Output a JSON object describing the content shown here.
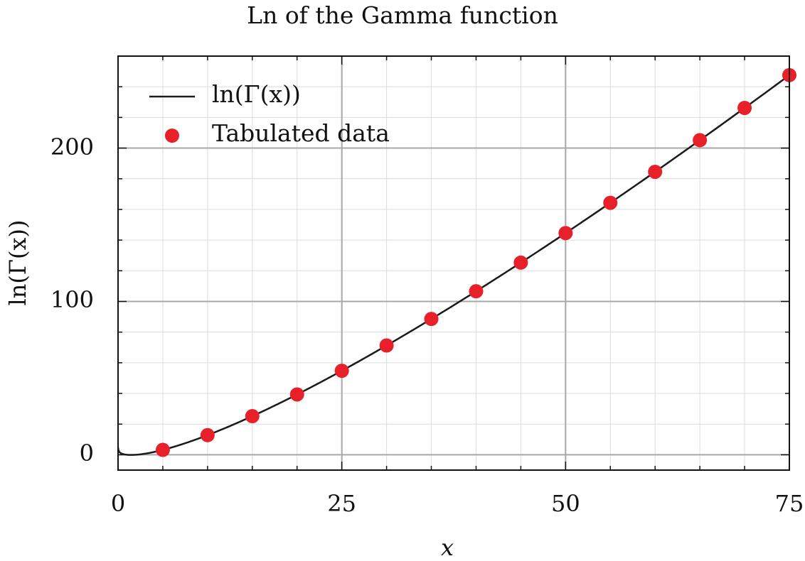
{
  "chart_data": {
    "type": "line",
    "title": "Ln of the Gamma function",
    "xlabel": "x",
    "ylabel": "ln(Γ(x))",
    "xlim": [
      0,
      75
    ],
    "ylim": [
      -10,
      260
    ],
    "xticks": [
      0,
      25,
      50,
      75
    ],
    "yticks": [
      0,
      100,
      200
    ],
    "grid": true,
    "legend_position": "top-left",
    "series": [
      {
        "name": "ln(Γ(x))",
        "kind": "line",
        "color": "#1a1a1a",
        "function": "lngamma",
        "x_range": [
          0.01,
          75
        ]
      },
      {
        "name": "Tabulated data",
        "kind": "scatter",
        "color": "#e8202a",
        "x": [
          5,
          10,
          15,
          20,
          25,
          30,
          35,
          40,
          45,
          50,
          55,
          60,
          65,
          70,
          75
        ],
        "y": [
          3.18,
          12.8,
          25.19,
          39.34,
          54.78,
          71.26,
          88.58,
          106.63,
          125.32,
          144.57,
          164.32,
          184.53,
          205.17,
          226.19,
          247.58
        ]
      }
    ]
  }
}
